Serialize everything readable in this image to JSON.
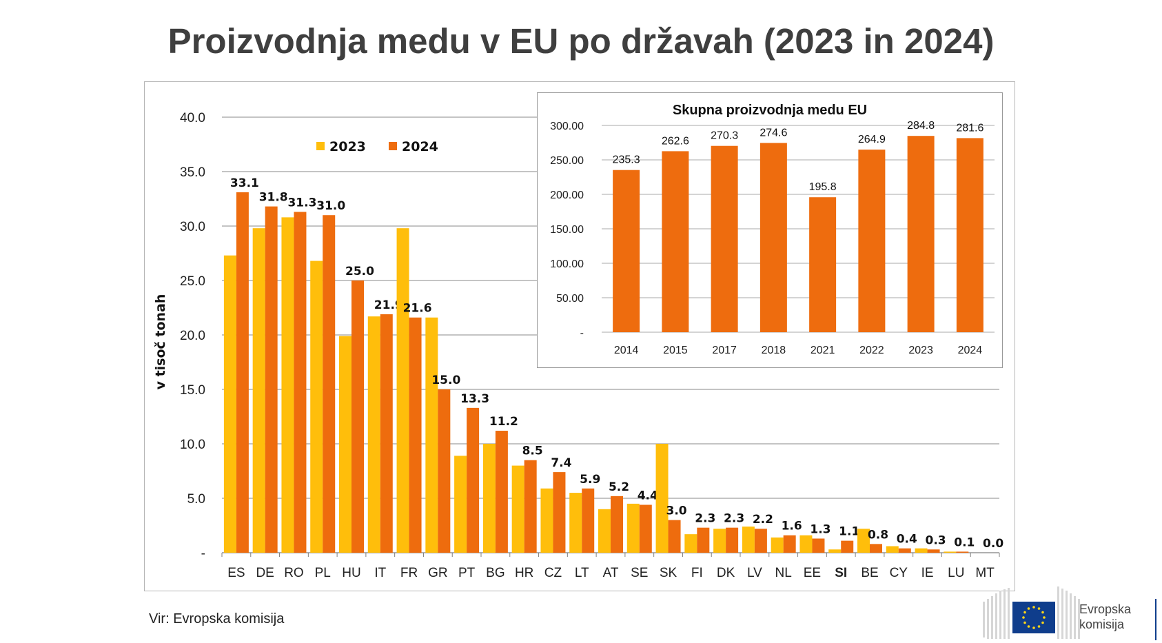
{
  "title": "Proizvodnja medu v EU po državah (2023 in 2024)",
  "source": "Vir: Evropska komisija",
  "logo": {
    "line1": "Evropska",
    "line2": "komisija",
    "icon": "eu-flag-icon"
  },
  "colors": {
    "series2023": "#FFBE0B",
    "series2024": "#EE6C0E",
    "highlight": "#1E9B3B",
    "grid": "#a0a0a0"
  },
  "chart_data": [
    {
      "type": "bar",
      "title": "",
      "xlabel": "",
      "ylabel": "v tisoč tonah",
      "ylim": [
        0,
        40
      ],
      "yticks": [
        "-",
        "5.0",
        "10.0",
        "15.0",
        "20.0",
        "25.0",
        "30.0",
        "35.0",
        "40.0"
      ],
      "grid": true,
      "legend_position": "top-left",
      "categories": [
        "ES",
        "DE",
        "RO",
        "PL",
        "HU",
        "IT",
        "FR",
        "GR",
        "PT",
        "BG",
        "HR",
        "CZ",
        "LT",
        "AT",
        "SE",
        "SK",
        "FI",
        "DK",
        "LV",
        "NL",
        "EE",
        "SI",
        "BE",
        "CY",
        "IE",
        "LU",
        "MT"
      ],
      "highlight_category": "SI",
      "series": [
        {
          "name": "2023",
          "values": [
            27.3,
            29.8,
            30.8,
            26.8,
            19.9,
            21.7,
            29.8,
            21.6,
            8.9,
            10.0,
            8.0,
            5.9,
            5.5,
            4.0,
            4.5,
            10.0,
            1.7,
            2.2,
            2.4,
            1.4,
            1.6,
            0.3,
            2.2,
            0.6,
            0.4,
            0.1,
            0.0
          ]
        },
        {
          "name": "2024",
          "values": [
            33.1,
            31.8,
            31.3,
            31.0,
            25.0,
            21.9,
            21.6,
            15.0,
            13.3,
            11.2,
            8.5,
            7.4,
            5.9,
            5.2,
            4.4,
            3.0,
            2.3,
            2.3,
            2.2,
            1.6,
            1.3,
            1.1,
            0.8,
            0.4,
            0.3,
            0.1,
            0.0
          ]
        }
      ],
      "data_labels": [
        "33.1",
        "31.8",
        "31.3",
        "31.0",
        "25.0",
        "21.9",
        "21.6",
        "15.0",
        "13.3",
        "11.2",
        "8.5",
        "7.4",
        "5.9",
        "5.2",
        "4.4",
        "3.0",
        "2.3",
        "2.3",
        "2.2",
        "1.6",
        "1.3",
        "1.1",
        "0.8",
        "0.4",
        "0.3",
        "0.1",
        "0.0"
      ]
    },
    {
      "type": "bar",
      "title": "Skupna proizvodnja medu EU",
      "xlabel": "",
      "ylabel": "",
      "ylim": [
        0,
        300
      ],
      "yticks": [
        "-",
        "50.00",
        "100.00",
        "150.00",
        "200.00",
        "250.00",
        "300.00"
      ],
      "grid": true,
      "categories": [
        "2014",
        "2015",
        "2017",
        "2018",
        "2021",
        "2022",
        "2023",
        "2024"
      ],
      "values": [
        235.3,
        262.6,
        270.3,
        274.6,
        195.8,
        264.9,
        284.8,
        281.6
      ],
      "data_labels": [
        "235.3",
        "262.6",
        "270.3",
        "274.6",
        "195.8",
        "264.9",
        "284.8",
        "281.6"
      ]
    }
  ]
}
